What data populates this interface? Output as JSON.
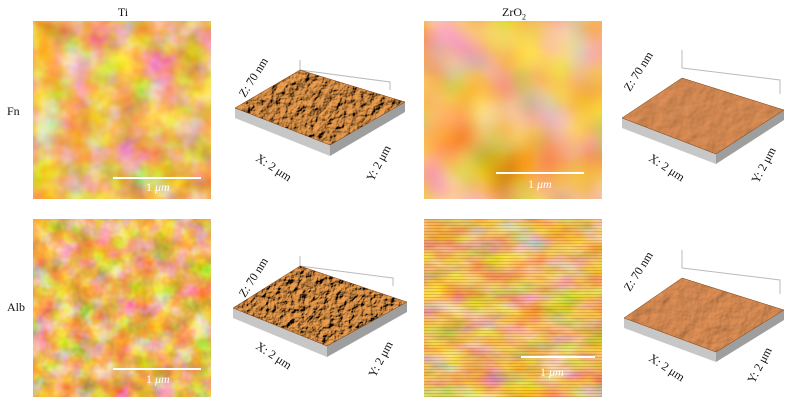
{
  "columns": {
    "ti": "Ti",
    "zro2_main": "ZrO",
    "zro2_sub": "2"
  },
  "rows": {
    "fn": "Fn",
    "alb": "Alb"
  },
  "scale_bar": {
    "value": "1",
    "unit": "μm"
  },
  "axes_3d": {
    "z": "Z: 70 nm",
    "x": "X: 2 μm",
    "y": "Y: 2 μm"
  },
  "colors": {
    "afm_dark": "#2a1200",
    "afm_mid": "#d2741f",
    "afm_light": "#fff2dc",
    "surface_3d": "#b85e1c"
  }
}
